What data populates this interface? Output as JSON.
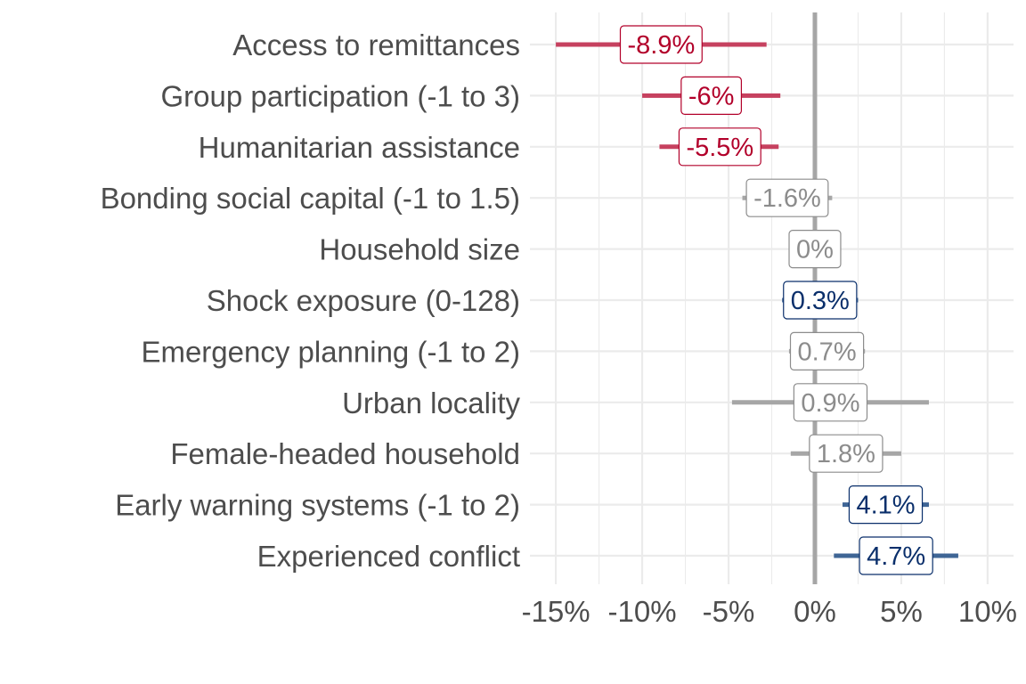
{
  "chart_data": {
    "type": "forest",
    "title": "",
    "xlabel": "",
    "ylabel": "",
    "xlim": [
      -16.5,
      11.5
    ],
    "x_ticks": [
      -15,
      -10,
      -5,
      0,
      5,
      10
    ],
    "x_tick_labels": [
      "-15%",
      "-10%",
      "-5%",
      "0%",
      "5%",
      "10%"
    ],
    "grid": true,
    "legend": "none",
    "colors": {
      "negative": "#c6415f",
      "negative_text": "#b2002a",
      "positive": "#3f6595",
      "positive_text": "#0a2f6b",
      "neutral": "#a6a6a6",
      "neutral_text": "#8c8c8c",
      "zero_line": "#a6a6a6",
      "grid": "#ebebeb"
    },
    "rows": [
      {
        "label": "Access to remittances",
        "estimate": -8.9,
        "low": -15,
        "high": -2.8,
        "value_label": "-8.9%",
        "group": "negative"
      },
      {
        "label": "Group participation (-1 to 3)",
        "estimate": -6.0,
        "low": -10,
        "high": -2.0,
        "value_label": "-6%",
        "group": "negative"
      },
      {
        "label": "Humanitarian assistance",
        "estimate": -5.5,
        "low": -9,
        "high": -2.1,
        "value_label": "-5.5%",
        "group": "negative"
      },
      {
        "label": "Bonding social capital (-1 to 1.5)",
        "estimate": -1.6,
        "low": -4.2,
        "high": 1.0,
        "value_label": "-1.6%",
        "group": "neutral"
      },
      {
        "label": "Household size",
        "estimate": 0,
        "low": -1.5,
        "high": 1.5,
        "value_label": "0%",
        "group": "neutral"
      },
      {
        "label": "Shock exposure (0-128)",
        "estimate": 0.3,
        "low": -1.9,
        "high": 2.5,
        "value_label": "0.3%",
        "group": "positive"
      },
      {
        "label": "Emergency planning (-1 to 2)",
        "estimate": 0.7,
        "low": -1.5,
        "high": 2.9,
        "value_label": "0.7%",
        "group": "neutral"
      },
      {
        "label": "Urban locality",
        "estimate": 0.9,
        "low": -4.8,
        "high": 6.6,
        "value_label": "0.9%",
        "group": "neutral"
      },
      {
        "label": "Female-headed household",
        "estimate": 1.8,
        "low": -1.4,
        "high": 5.0,
        "value_label": "1.8%",
        "group": "neutral"
      },
      {
        "label": "Early warning systems (-1 to 2)",
        "estimate": 4.1,
        "low": 1.6,
        "high": 6.6,
        "value_label": "4.1%",
        "group": "positive"
      },
      {
        "label": "Experienced conflict",
        "estimate": 4.7,
        "low": 1.1,
        "high": 8.3,
        "value_label": "4.7%",
        "group": "positive"
      }
    ]
  }
}
